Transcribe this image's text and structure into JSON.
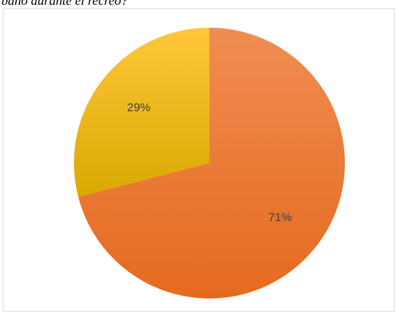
{
  "caption": "baño durante el recreo?",
  "chart_data": {
    "type": "pie",
    "start_angle_deg": 0,
    "direction": "clockwise",
    "slices": [
      {
        "value": 71,
        "label": "71%",
        "color": "#ED7D31",
        "color_light": "#F08D52",
        "color_dark": "#E56A1E"
      },
      {
        "value": 29,
        "label": "29%",
        "color": "#FFC000",
        "color_light": "#FFC73A",
        "color_dark": "#D9A900"
      }
    ]
  }
}
